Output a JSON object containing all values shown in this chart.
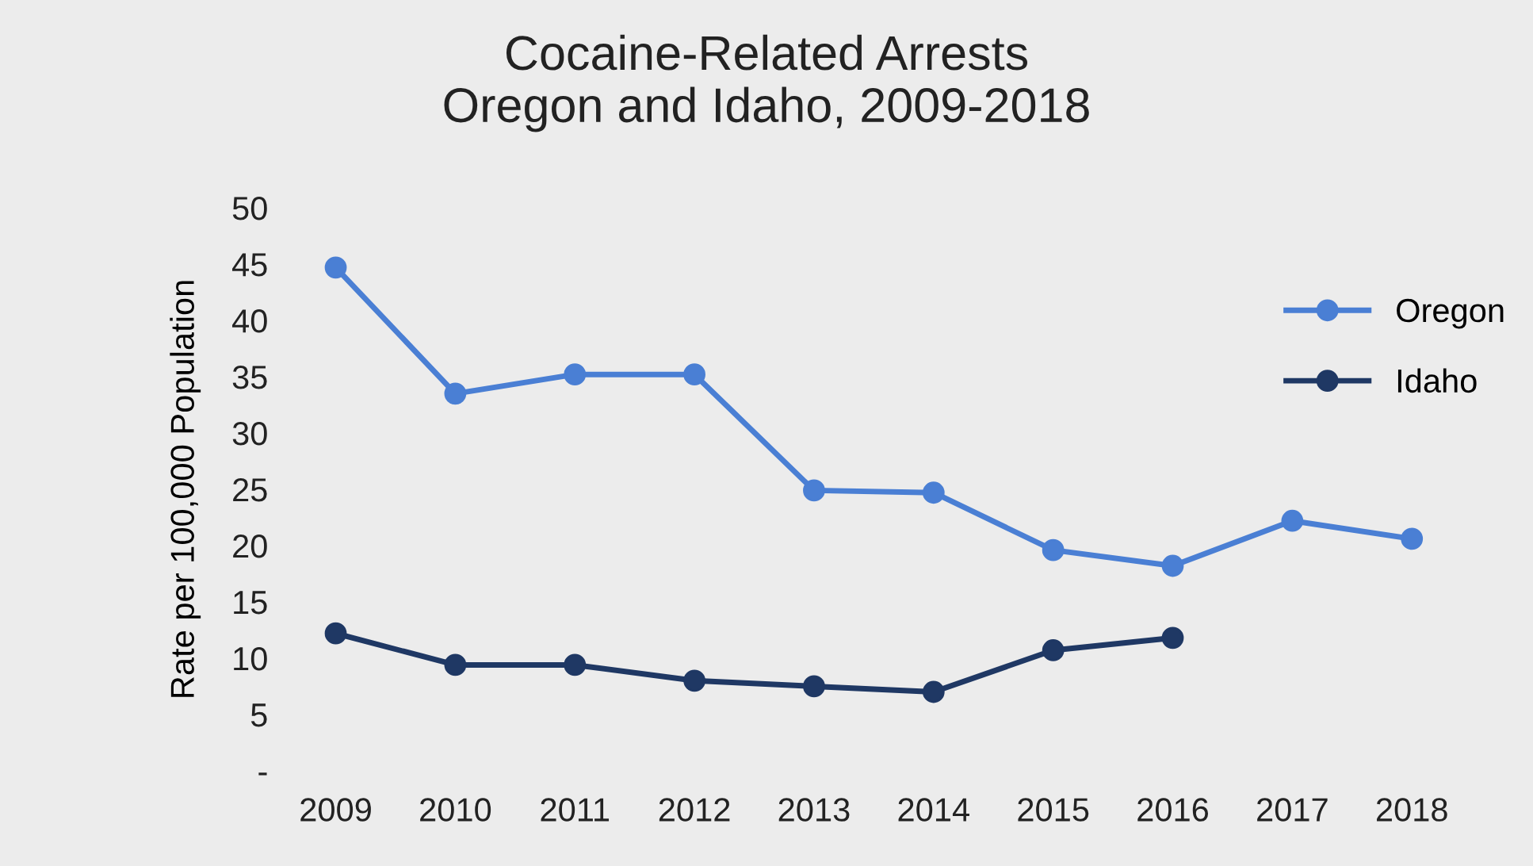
{
  "chart_data": {
    "type": "line",
    "title": "Cocaine-Related Arrests\nOregon and Idaho, 2009-2018",
    "ylabel": "Rate per 100,000 Population",
    "categories": [
      "2009",
      "2010",
      "2011",
      "2012",
      "2013",
      "2014",
      "2015",
      "2016",
      "2017",
      "2018"
    ],
    "series": [
      {
        "name": "Oregon",
        "color": "#4a7fd4",
        "values": [
          44.7,
          33.5,
          35.2,
          35.2,
          24.9,
          24.7,
          19.6,
          18.2,
          22.2,
          20.6
        ]
      },
      {
        "name": "Idaho",
        "color": "#1f3864",
        "values": [
          12.2,
          9.4,
          9.4,
          8.0,
          7.5,
          7.0,
          10.7,
          11.8,
          null,
          null
        ]
      }
    ],
    "ylim": [
      0,
      50
    ],
    "yticks": [
      {
        "value": 0,
        "label": "-"
      },
      5,
      10,
      15,
      20,
      25,
      30,
      35,
      40,
      45,
      50
    ],
    "grid": false,
    "legend": "right",
    "marker": "circle",
    "line_style": "solid"
  }
}
